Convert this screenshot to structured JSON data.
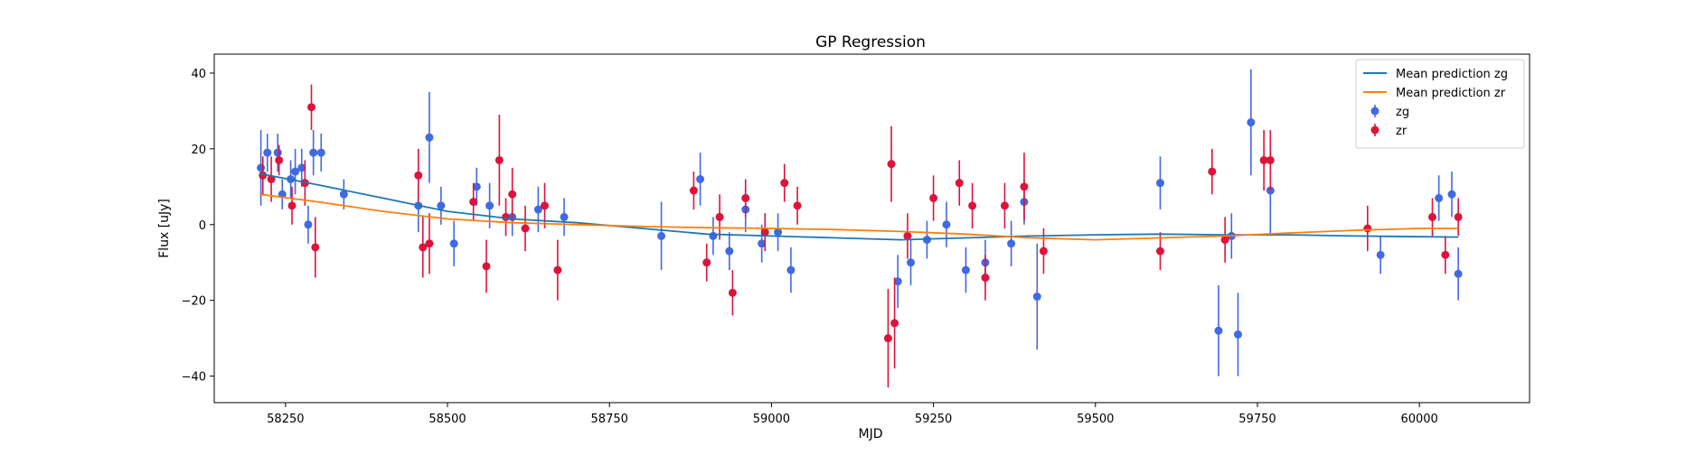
{
  "chart_data": {
    "type": "scatter",
    "title": "GP Regression",
    "xlabel": "MJD",
    "ylabel": "Flux [uJy]",
    "xlim": [
      58140,
      60170
    ],
    "ylim": [
      -47,
      45
    ],
    "xticks": [
      58250,
      58500,
      58750,
      59000,
      59250,
      59500,
      59750,
      60000
    ],
    "yticks": [
      -40,
      -20,
      0,
      20,
      40
    ],
    "grid": false,
    "legend_position": "top-right",
    "series": [
      {
        "name": "Mean prediction zg",
        "kind": "line",
        "color": "#1f77b4",
        "x": [
          58210,
          58300,
          58400,
          58500,
          58600,
          58700,
          58800,
          58900,
          59000,
          59100,
          59200,
          59300,
          59400,
          59500,
          59600,
          59700,
          59800,
          59900,
          60000,
          60060
        ],
        "y": [
          13.5,
          10.5,
          7,
          3.5,
          1.5,
          0.5,
          -1,
          -2.5,
          -3,
          -3.5,
          -4,
          -3.5,
          -3,
          -2.7,
          -2.5,
          -2.7,
          -2.7,
          -3,
          -3.2,
          -3.3
        ]
      },
      {
        "name": "Mean prediction zr",
        "kind": "line",
        "color": "#ff7f0e",
        "x": [
          58210,
          58300,
          58400,
          58500,
          58600,
          58700,
          58800,
          58900,
          59000,
          59100,
          59200,
          59300,
          59400,
          59500,
          59600,
          59700,
          59800,
          59900,
          60000,
          60060
        ],
        "y": [
          8,
          6,
          3.5,
          1.5,
          0.5,
          0,
          -0.5,
          -0.8,
          -1,
          -1.3,
          -1.8,
          -2.5,
          -3.5,
          -4,
          -3.5,
          -3,
          -2.2,
          -1.5,
          -1,
          -1
        ]
      },
      {
        "name": "zg",
        "kind": "errorbar",
        "color": "#4169e1",
        "x": [
          58212,
          58222,
          58238,
          58245,
          58258,
          58265,
          58275,
          58285,
          58293,
          58305,
          58340,
          58455,
          58472,
          58490,
          58510,
          58545,
          58565,
          58600,
          58640,
          58680,
          58830,
          58890,
          58910,
          58935,
          58960,
          58985,
          59010,
          59030,
          59195,
          59215,
          59240,
          59270,
          59300,
          59330,
          59370,
          59390,
          59410,
          59600,
          59690,
          59710,
          59720,
          59740,
          59770,
          59940,
          60030,
          60050,
          60060
        ],
        "y": [
          15,
          19,
          19,
          8,
          12,
          14,
          15,
          0,
          19,
          19,
          8,
          5,
          23,
          5,
          -5,
          10,
          5,
          2,
          4,
          2,
          -3,
          12,
          -3,
          -7,
          4,
          -5,
          -2,
          -12,
          -15,
          -10,
          -4,
          0,
          -12,
          -10,
          -5,
          6,
          -19,
          11,
          -28,
          -3,
          -29,
          27,
          9,
          -8,
          7,
          8,
          -13
        ],
        "err": [
          10,
          5,
          5,
          4,
          5,
          6,
          5,
          5,
          6,
          5,
          4,
          7,
          12,
          5,
          6,
          5,
          6,
          5,
          6,
          5,
          9,
          7,
          5,
          5,
          6,
          5,
          5,
          6,
          7,
          6,
          5,
          6,
          6,
          6,
          6,
          6,
          14,
          7,
          12,
          6,
          11,
          14,
          12,
          5,
          6,
          6,
          7
        ]
      },
      {
        "name": "zr",
        "kind": "errorbar",
        "color": "#dc143c",
        "x": [
          58215,
          58228,
          58240,
          58260,
          58280,
          58290,
          58296,
          58455,
          58462,
          58472,
          58540,
          58560,
          58580,
          58590,
          58600,
          58620,
          58650,
          58670,
          58880,
          58900,
          58920,
          58940,
          58960,
          58990,
          59020,
          59040,
          59180,
          59185,
          59190,
          59210,
          59250,
          59290,
          59310,
          59330,
          59360,
          59390,
          59420,
          59600,
          59680,
          59700,
          59760,
          59770,
          59920,
          60020,
          60040,
          60060
        ],
        "y": [
          13,
          12,
          17,
          5,
          11,
          31,
          -6,
          13,
          -6,
          -5,
          6,
          -11,
          17,
          2,
          8,
          -1,
          5,
          -12,
          9,
          -10,
          2,
          -18,
          7,
          -2,
          11,
          5,
          -30,
          16,
          -26,
          -3,
          7,
          11,
          5,
          -14,
          5,
          10,
          -7,
          -7,
          14,
          -4,
          17,
          17,
          -1,
          2,
          -8,
          2
        ],
        "err": [
          5,
          6,
          4,
          5,
          6,
          6,
          8,
          7,
          8,
          8,
          5,
          7,
          12,
          5,
          7,
          6,
          6,
          8,
          5,
          5,
          6,
          6,
          5,
          5,
          5,
          5,
          13,
          10,
          12,
          6,
          6,
          6,
          6,
          6,
          6,
          9,
          6,
          5,
          6,
          6,
          8,
          8,
          6,
          5,
          5,
          5
        ]
      }
    ]
  }
}
